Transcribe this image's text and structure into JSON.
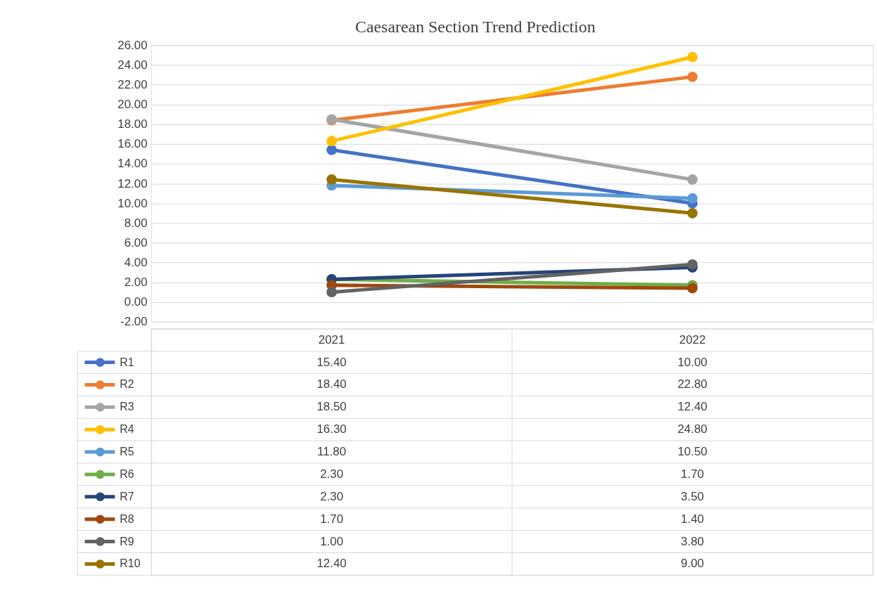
{
  "chart_data": {
    "type": "line",
    "title": "Caesarean Section Trend Prediction",
    "categories": [
      "2021",
      "2022"
    ],
    "series": [
      {
        "name": "R1",
        "color": "#4472c4",
        "values": [
          15.4,
          10.0
        ],
        "value_labels": [
          "15.40",
          "10.00"
        ]
      },
      {
        "name": "R2",
        "color": "#ed7d31",
        "values": [
          18.4,
          22.8
        ],
        "value_labels": [
          "18.40",
          "22.80"
        ]
      },
      {
        "name": "R3",
        "color": "#a5a5a5",
        "values": [
          18.5,
          12.4
        ],
        "value_labels": [
          "18.50",
          "12.40"
        ]
      },
      {
        "name": "R4",
        "color": "#ffc000",
        "values": [
          16.3,
          24.8
        ],
        "value_labels": [
          "16.30",
          "24.80"
        ]
      },
      {
        "name": "R5",
        "color": "#5b9bd5",
        "values": [
          11.8,
          10.5
        ],
        "value_labels": [
          "11.80",
          "10.50"
        ]
      },
      {
        "name": "R6",
        "color": "#70ad47",
        "values": [
          2.3,
          1.7
        ],
        "value_labels": [
          "2.30",
          "1.70"
        ]
      },
      {
        "name": "R7",
        "color": "#264478",
        "values": [
          2.3,
          3.5
        ],
        "value_labels": [
          "2.30",
          "3.50"
        ]
      },
      {
        "name": "R8",
        "color": "#9e480e",
        "values": [
          1.7,
          1.4
        ],
        "value_labels": [
          "1.70",
          "1.40"
        ]
      },
      {
        "name": "R9",
        "color": "#636363",
        "values": [
          1.0,
          3.8
        ],
        "value_labels": [
          "1.00",
          "3.80"
        ]
      },
      {
        "name": "R10",
        "color": "#997300",
        "values": [
          12.4,
          9.0
        ],
        "value_labels": [
          "12.40",
          "9.00"
        ]
      }
    ],
    "ylim": [
      -2,
      26
    ],
    "yticks": [
      {
        "value": -2,
        "label": "-2.00"
      },
      {
        "value": 0,
        "label": "0.00"
      },
      {
        "value": 2,
        "label": "2.00"
      },
      {
        "value": 4,
        "label": "4.00"
      },
      {
        "value": 6,
        "label": "6.00"
      },
      {
        "value": 8,
        "label": "8.00"
      },
      {
        "value": 10,
        "label": "10.00"
      },
      {
        "value": 12,
        "label": "12.00"
      },
      {
        "value": 14,
        "label": "14.00"
      },
      {
        "value": 16,
        "label": "16.00"
      },
      {
        "value": 18,
        "label": "18.00"
      },
      {
        "value": 20,
        "label": "20.00"
      },
      {
        "value": 22,
        "label": "22.00"
      },
      {
        "value": 24,
        "label": "24.00"
      },
      {
        "value": 26,
        "label": "26.00"
      }
    ],
    "grid": "y",
    "legend": "bottom",
    "marker": "circle",
    "line_style": "solid",
    "tick_labels": "y"
  }
}
